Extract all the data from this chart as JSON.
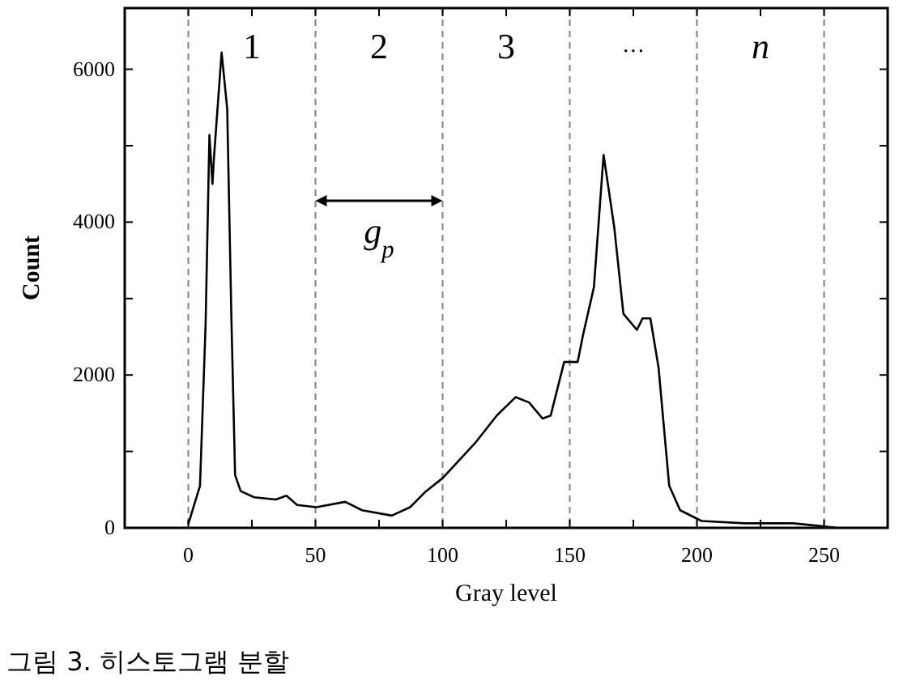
{
  "chart_data": {
    "type": "line",
    "xlabel": "Gray level",
    "ylabel": "Count",
    "x": [
      0,
      4.6,
      6.8,
      8.3,
      9.5,
      10.1,
      13.1,
      15.3,
      17,
      18.4,
      20.6,
      25.9,
      34.4,
      38.6,
      42.8,
      50.3,
      61.7,
      68.3,
      80,
      87.2,
      93.5,
      100,
      112.8,
      121.3,
      128.7,
      134,
      139.3,
      142.5,
      147.8,
      153.1,
      155.2,
      159.5,
      163.3,
      167.5,
      171.1,
      176.4,
      178.6,
      181.7,
      184.9,
      189.1,
      193.4,
      201.8,
      218.8,
      237.9,
      249.6,
      254.9
    ],
    "series": [
      {
        "color": "#000000",
        "values": [
          50,
          550,
          2660,
          5140,
          4500,
          4850,
          6220,
          5480,
          2660,
          690,
          480,
          400,
          370,
          420,
          300,
          270,
          340,
          230,
          160,
          270,
          480,
          650,
          1110,
          1470,
          1710,
          1640,
          1430,
          1470,
          2170,
          2170,
          2520,
          3150,
          4880,
          3930,
          2800,
          2590,
          2740,
          2740,
          2100,
          550,
          230,
          90,
          60,
          60,
          20,
          0
        ]
      }
    ],
    "xlim": [
      -25,
      275
    ],
    "xticks": [
      0,
      {
        "value": 25,
        "label": null
      },
      50,
      {
        "value": 75,
        "label": null
      },
      100,
      {
        "value": 125,
        "label": null
      },
      150,
      {
        "value": 175,
        "label": null
      },
      200,
      {
        "value": 225,
        "label": null
      },
      250
    ],
    "ylim": [
      0,
      6800
    ],
    "yticks": [
      0,
      {
        "value": 1000,
        "label": null
      },
      2000,
      {
        "value": 3000,
        "label": null
      },
      4000,
      {
        "value": 5000,
        "label": null
      },
      6000
    ],
    "ref_lines": [
      {
        "axis": "x",
        "value": 0,
        "color": "#808080",
        "line_style": "dashed"
      },
      {
        "axis": "x",
        "value": 50,
        "color": "#808080",
        "line_style": "dashed"
      },
      {
        "axis": "x",
        "value": 100,
        "color": "#808080",
        "line_style": "dashed"
      },
      {
        "axis": "x",
        "value": 150,
        "color": "#808080",
        "line_style": "dashed"
      },
      {
        "axis": "x",
        "value": 200,
        "color": "#808080",
        "line_style": "dashed"
      },
      {
        "axis": "x",
        "value": 250,
        "color": "#808080",
        "line_style": "dashed"
      }
    ],
    "annotations": [
      "1",
      "2",
      "3",
      "···",
      "n",
      "g$_{p}$",
      "그림 3. 히스토그램 분할"
    ],
    "grid": false,
    "marker": "none",
    "line_style": "solid"
  }
}
